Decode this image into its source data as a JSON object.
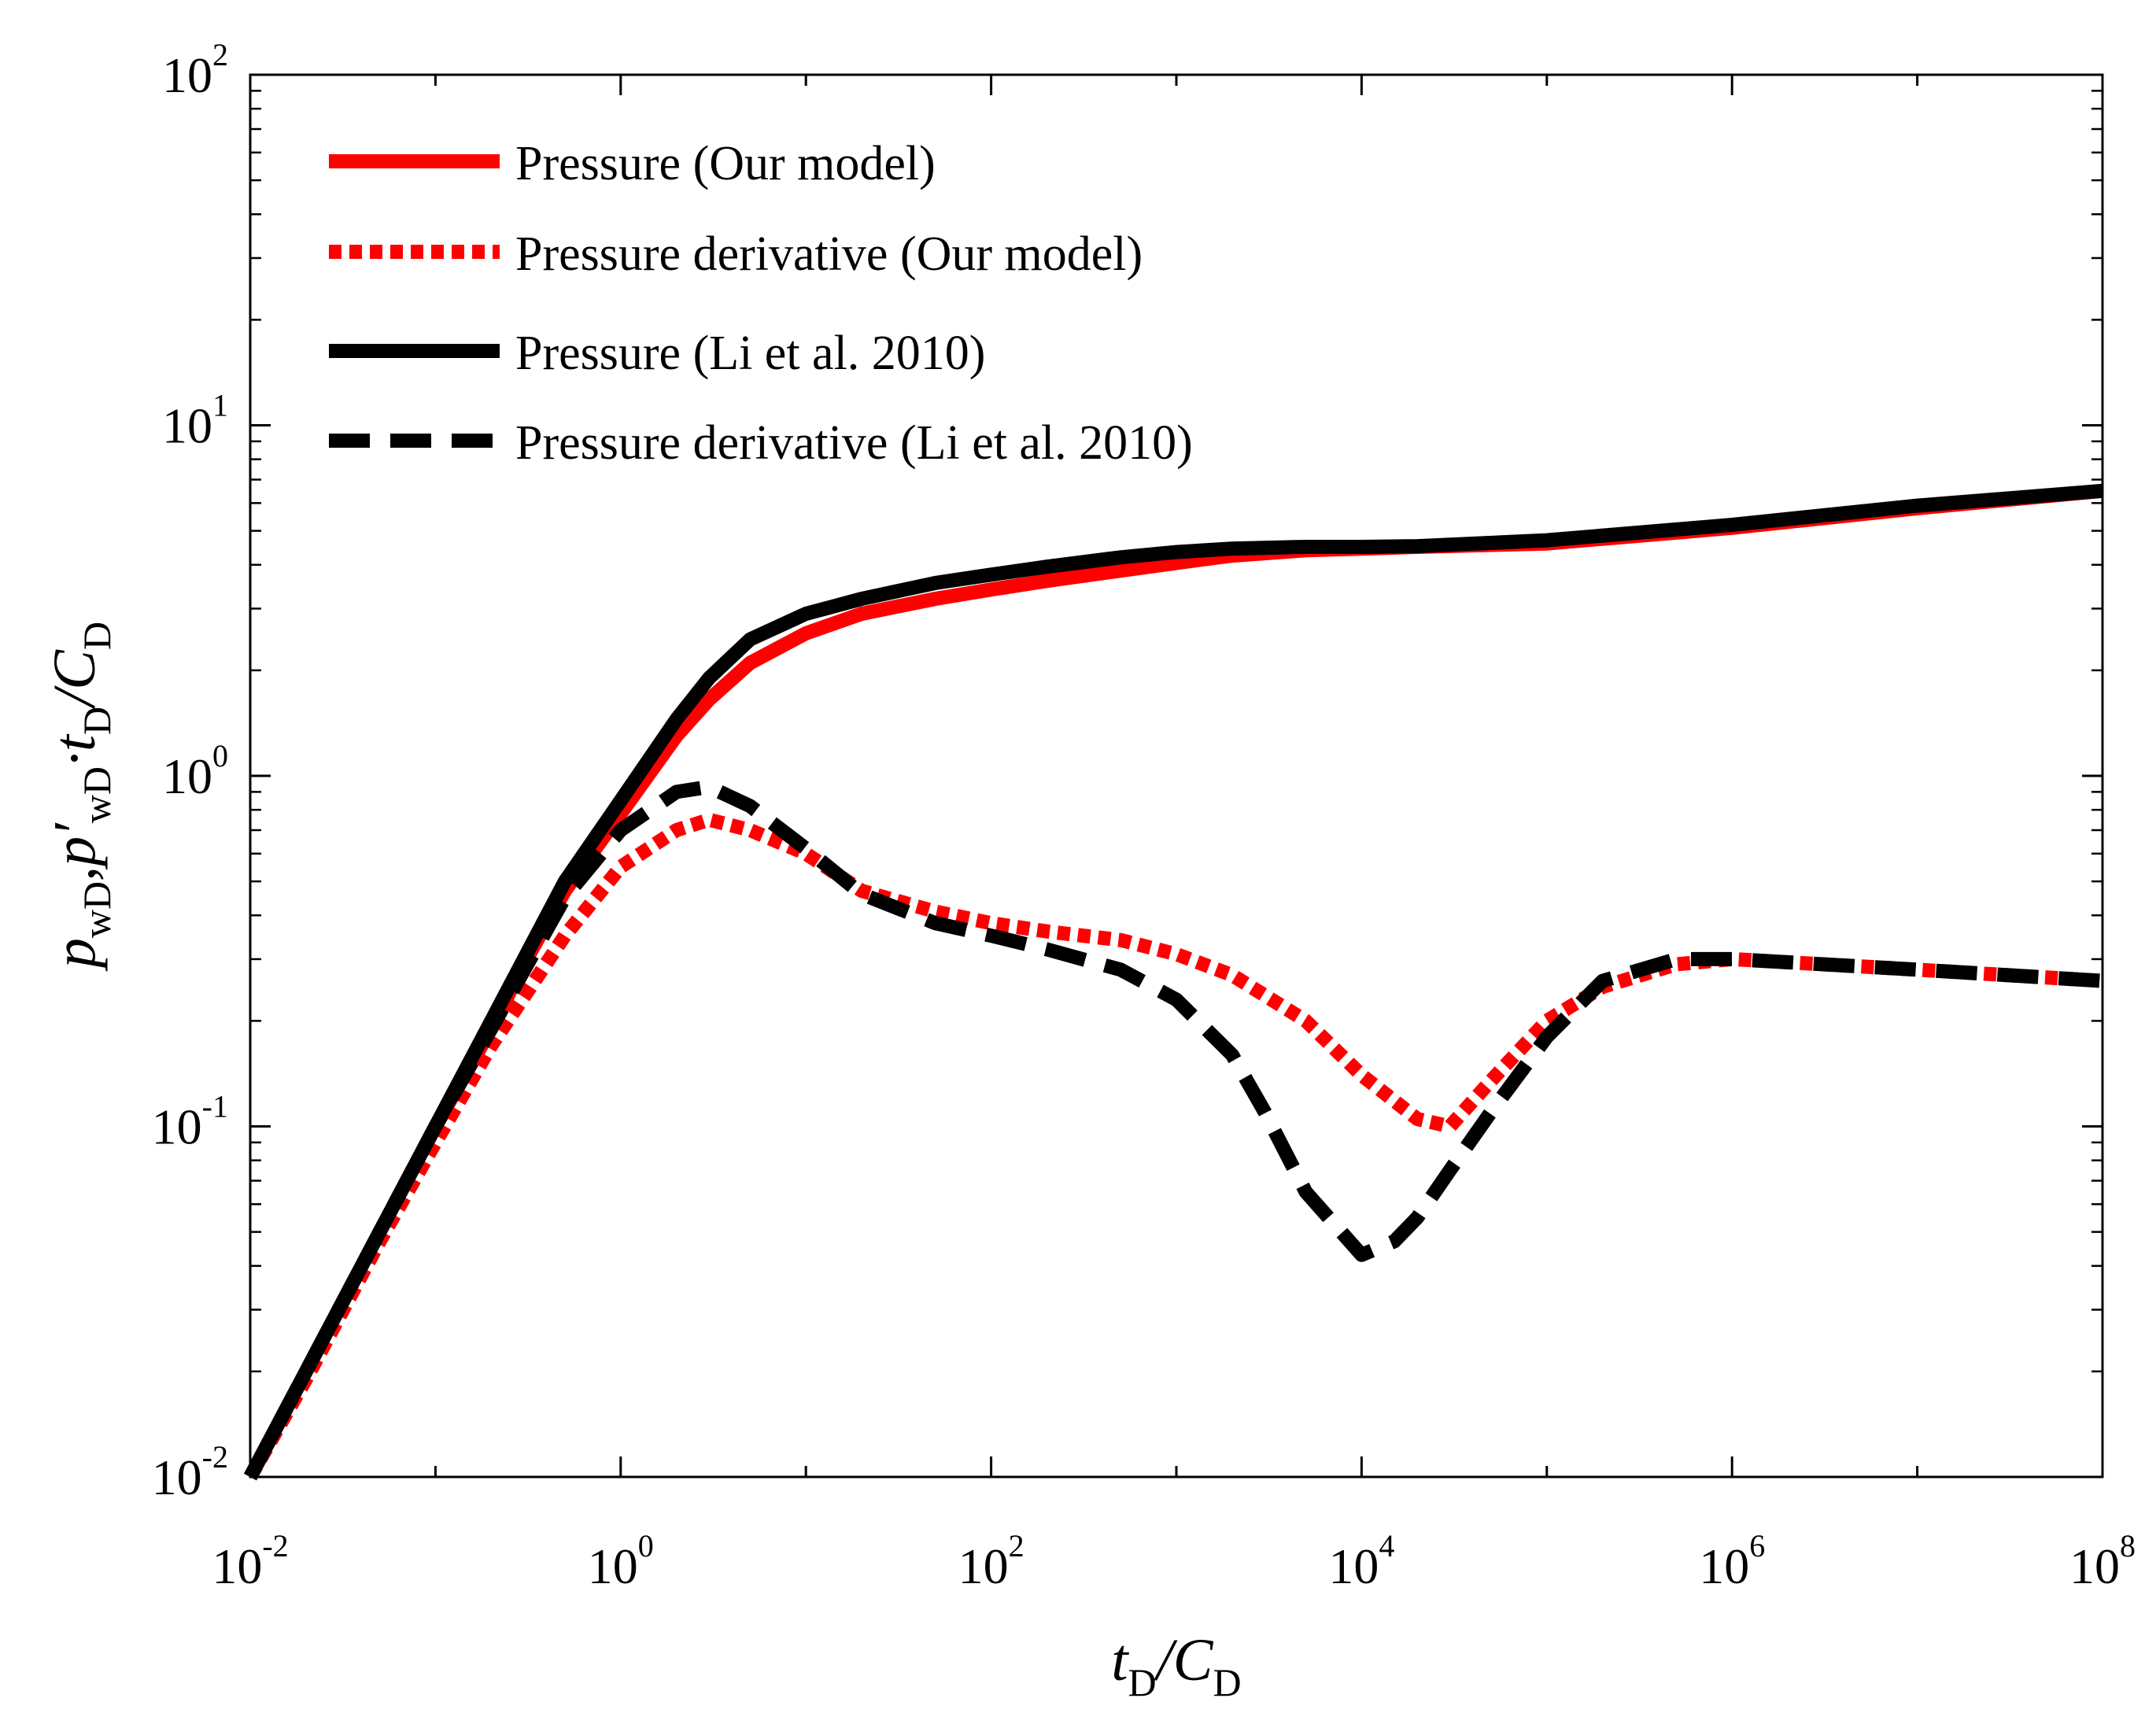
{
  "chart_data": {
    "type": "line",
    "x_scale": "log",
    "y_scale": "log",
    "xlim": [
      0.01,
      100000000
    ],
    "ylim": [
      0.01,
      100
    ],
    "x_tick_labels": [
      {
        "base": "10",
        "exp": "-2"
      },
      {
        "base": "10",
        "exp": "0"
      },
      {
        "base": "10",
        "exp": "2"
      },
      {
        "base": "10",
        "exp": "4"
      },
      {
        "base": "10",
        "exp": "6"
      },
      {
        "base": "10",
        "exp": "8"
      }
    ],
    "y_tick_labels": [
      {
        "base": "10",
        "exp": "-2"
      },
      {
        "base": "10",
        "exp": "-1"
      },
      {
        "base": "10",
        "exp": "0"
      },
      {
        "base": "10",
        "exp": "1"
      },
      {
        "base": "10",
        "exp": "2"
      }
    ],
    "xlabel": {
      "t": "t",
      "sub1": "D",
      "slash": "/",
      "c": "C",
      "sub2": "D"
    },
    "ylabel": {
      "p1": "p",
      "sub_wd1": "wD",
      "comma1": ",",
      "p2": "p′",
      "sub_wd2": "wD",
      "dot": "·t",
      "sub_d1": "D",
      "slash": "/",
      "c": "C",
      "sub_d2": "D"
    },
    "legend_position": "top-left",
    "series": [
      {
        "name": "Pressure (Our model)",
        "color": "#ff0000",
        "style": "solid",
        "x": [
          0.01,
          0.02,
          0.05,
          0.1,
          0.2,
          0.3,
          0.5,
          1,
          2,
          3,
          5,
          10,
          20,
          50,
          100,
          200,
          500,
          1000,
          2000,
          5000,
          10000,
          20000,
          100000,
          1000000,
          10000000,
          100000000
        ],
        "y": [
          0.01,
          0.02,
          0.05,
          0.1,
          0.19,
          0.29,
          0.47,
          0.78,
          1.3,
          1.65,
          2.1,
          2.55,
          2.9,
          3.2,
          3.4,
          3.6,
          3.85,
          4.05,
          4.25,
          4.4,
          4.45,
          4.5,
          4.6,
          5.1,
          5.8,
          6.5
        ]
      },
      {
        "name": "Pressure derivative (Our model)",
        "color": "#ff0000",
        "style": "dotted",
        "x": [
          0.01,
          0.02,
          0.05,
          0.1,
          0.2,
          0.5,
          1,
          2,
          3,
          5,
          10,
          20,
          50,
          100,
          200,
          500,
          1000,
          2000,
          5000,
          10000,
          20000,
          30000,
          50000,
          100000,
          200000,
          500000,
          1000000,
          10000000,
          100000000
        ],
        "y": [
          0.01,
          0.019,
          0.047,
          0.09,
          0.17,
          0.35,
          0.55,
          0.7,
          0.75,
          0.7,
          0.6,
          0.47,
          0.41,
          0.38,
          0.36,
          0.34,
          0.31,
          0.27,
          0.2,
          0.14,
          0.105,
          0.1,
          0.135,
          0.2,
          0.25,
          0.29,
          0.3,
          0.28,
          0.26
        ]
      },
      {
        "name": "Pressure (Li et al. 2010)",
        "color": "#000000",
        "style": "solid",
        "x": [
          0.01,
          0.02,
          0.05,
          0.1,
          0.2,
          0.3,
          0.5,
          1,
          2,
          3,
          5,
          10,
          20,
          50,
          100,
          200,
          500,
          1000,
          2000,
          5000,
          10000,
          20000,
          100000,
          1000000,
          10000000,
          100000000
        ],
        "y": [
          0.01,
          0.02,
          0.05,
          0.1,
          0.2,
          0.3,
          0.5,
          0.85,
          1.45,
          1.9,
          2.45,
          2.9,
          3.2,
          3.55,
          3.75,
          3.95,
          4.2,
          4.35,
          4.45,
          4.5,
          4.5,
          4.52,
          4.7,
          5.2,
          5.9,
          6.5
        ]
      },
      {
        "name": "Pressure derivative (Li et al. 2010)",
        "color": "#000000",
        "style": "dashed",
        "x": [
          0.01,
          0.02,
          0.05,
          0.1,
          0.2,
          0.5,
          1,
          2,
          3,
          5,
          10,
          20,
          50,
          100,
          200,
          500,
          1000,
          2000,
          3000,
          5000,
          10000,
          15000,
          20000,
          30000,
          50000,
          100000,
          200000,
          500000,
          1000000,
          10000000,
          100000000
        ],
        "y": [
          0.01,
          0.02,
          0.05,
          0.1,
          0.19,
          0.45,
          0.7,
          0.9,
          0.93,
          0.82,
          0.62,
          0.46,
          0.38,
          0.35,
          0.32,
          0.28,
          0.23,
          0.16,
          0.11,
          0.065,
          0.043,
          0.047,
          0.055,
          0.075,
          0.11,
          0.18,
          0.26,
          0.3,
          0.3,
          0.28,
          0.26
        ]
      }
    ]
  }
}
